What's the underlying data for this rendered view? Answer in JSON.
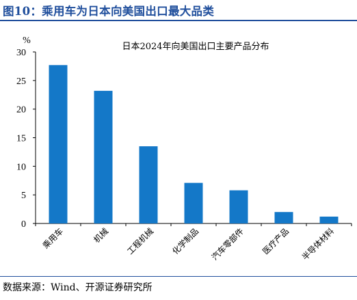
{
  "figure_title": "图10：乘用车为日本向美国出口最大品类",
  "source_note": "数据来源：Wind、开源证券研究所",
  "chart_data": {
    "type": "bar",
    "title": "日本2024年向美国出口主要产品分布",
    "ylabel": "%",
    "xlabel": "",
    "categories": [
      "乘用车",
      "机械",
      "工程机械",
      "化学制品",
      "汽车零部件",
      "医疗产品",
      "半导体材料"
    ],
    "values": [
      27.7,
      23.2,
      13.5,
      7.1,
      5.8,
      2.0,
      1.2
    ],
    "ylim": [
      0,
      30
    ],
    "yticks": [
      0,
      5,
      10,
      15,
      20,
      25,
      30
    ],
    "bar_color": "#1478c8",
    "grid": false,
    "legend": "none"
  }
}
